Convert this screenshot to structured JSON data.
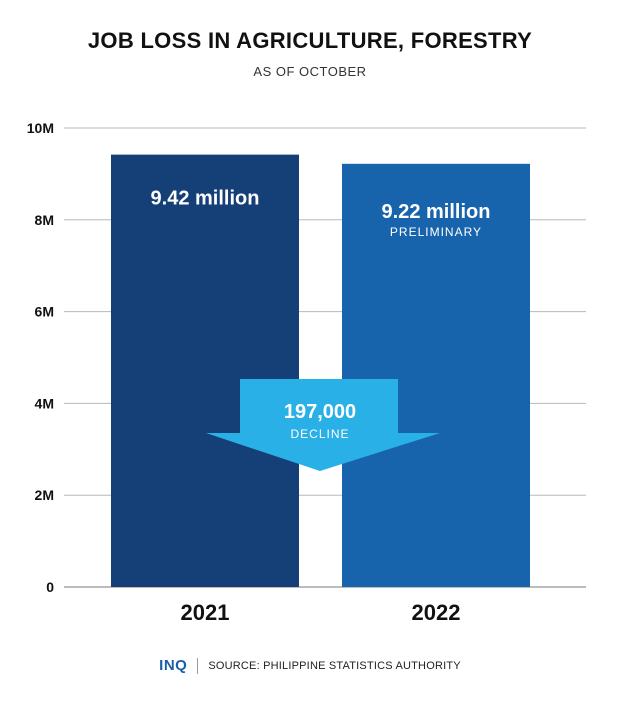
{
  "title": "JOB LOSS IN AGRICULTURE, FORESTRY",
  "subtitle": "AS OF OCTOBER",
  "footer": {
    "logo": "INQ",
    "source": "SOURCE: PHILIPPINE STATISTICS AUTHORITY"
  },
  "chart_data": {
    "type": "bar",
    "categories": [
      "2021",
      "2022"
    ],
    "values": [
      9.42,
      9.22
    ],
    "value_labels": [
      "9.42 million",
      "9.22 million"
    ],
    "value_notes": [
      "",
      "PRELIMINARY"
    ],
    "ylim": [
      0,
      10
    ],
    "yticks": [
      0,
      2,
      4,
      6,
      8,
      10
    ],
    "ytick_labels": [
      "0",
      "2M",
      "4M",
      "6M",
      "8M",
      "10M"
    ],
    "grid": true,
    "colors": [
      "#153f77",
      "#1864ac"
    ],
    "annotation": {
      "value": "197,000",
      "label": "DECLINE",
      "color": "#29b0e6"
    }
  }
}
